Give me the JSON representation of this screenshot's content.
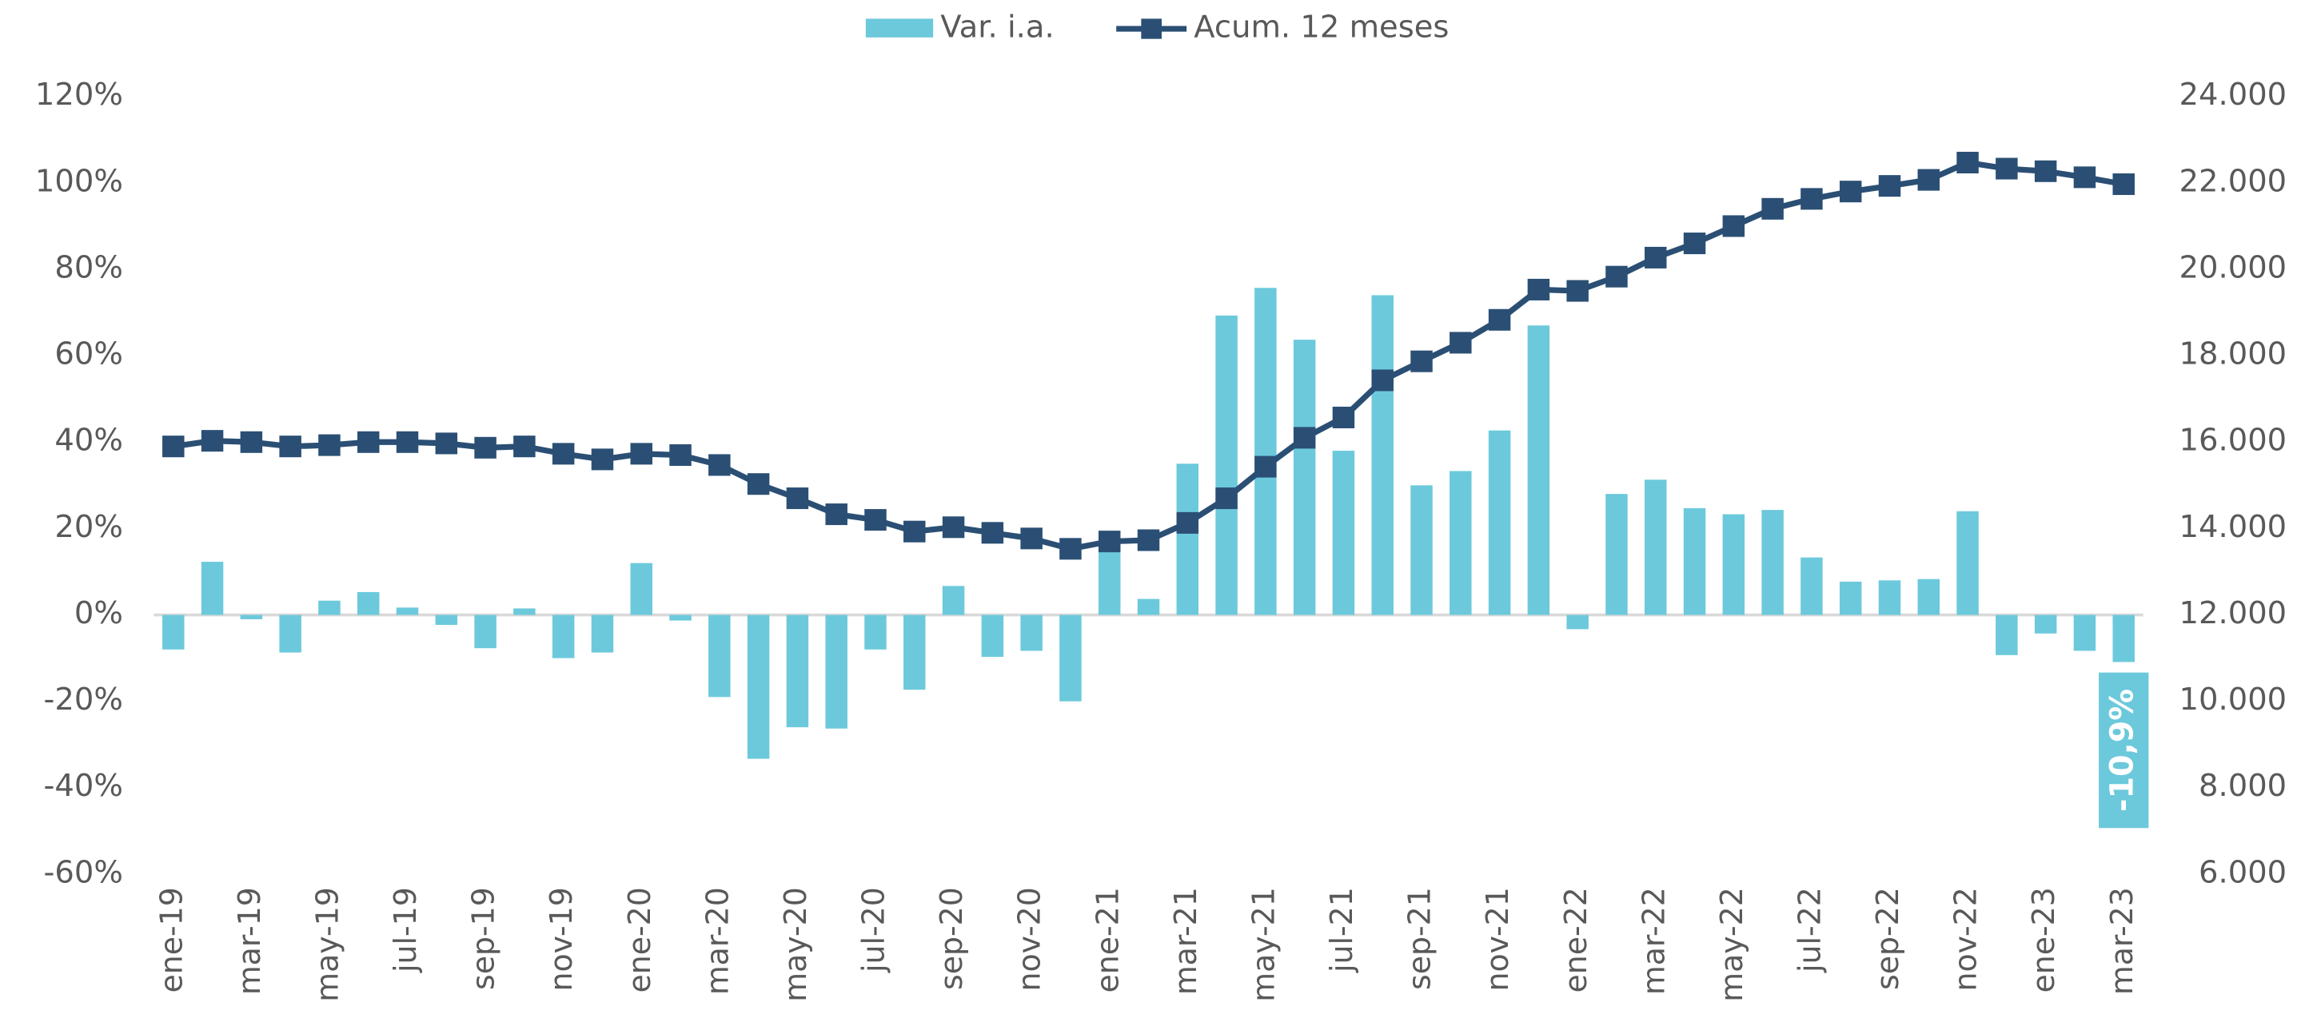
{
  "chart_data": {
    "type": "bar_line",
    "categories": [
      "ene-19",
      null,
      "mar-19",
      null,
      "may-19",
      null,
      "jul-19",
      null,
      "sep-19",
      null,
      "nov-19",
      null,
      "ene-20",
      null,
      "mar-20",
      null,
      "may-20",
      null,
      "jul-20",
      null,
      "sep-20",
      null,
      "nov-20",
      null,
      "ene-21",
      null,
      "mar-21",
      null,
      "may-21",
      null,
      "jul-21",
      null,
      "sep-21",
      null,
      "nov-21",
      null,
      "ene-22",
      null,
      "mar-22",
      null,
      "may-22",
      null,
      "jul-22",
      null,
      "sep-22",
      null,
      "nov-22",
      null,
      "ene-23",
      null,
      "mar-23"
    ],
    "series": [
      {
        "name": "Var. i.a.",
        "type": "bar",
        "color": "#6cc9db",
        "values": [
          -8,
          12.3,
          -1,
          -8.7,
          3.3,
          5.3,
          1.7,
          -2.3,
          -7.7,
          1.5,
          -10,
          -8.7,
          12,
          -1.3,
          -19,
          -33.3,
          -26,
          -26.3,
          -8,
          -17.3,
          6.7,
          -9.7,
          -8.3,
          -20,
          18,
          3.7,
          35,
          69.3,
          75.7,
          63.7,
          38,
          74,
          30,
          33.3,
          42.7,
          67,
          -3.3,
          28,
          31.3,
          24.7,
          23.3,
          24.3,
          13.3,
          7.7,
          8,
          8.3,
          24,
          -9.3,
          -4.3,
          -8.3,
          -10.9
        ],
        "value_labels": [
          null,
          null,
          null,
          null,
          null,
          null,
          null,
          null,
          null,
          null,
          null,
          null,
          null,
          null,
          null,
          null,
          null,
          null,
          null,
          null,
          null,
          null,
          null,
          null,
          null,
          null,
          null,
          null,
          null,
          null,
          null,
          null,
          null,
          null,
          null,
          null,
          null,
          null,
          null,
          null,
          null,
          null,
          null,
          null,
          null,
          null,
          null,
          null,
          null,
          null,
          "-10,9%"
        ]
      },
      {
        "name": "Acum. 12 meses",
        "type": "line",
        "axis": "y2",
        "color": "#2b4f74",
        "values": [
          15900,
          16030,
          16000,
          15900,
          15930,
          16000,
          16000,
          15970,
          15870,
          15900,
          15730,
          15600,
          15730,
          15700,
          15470,
          15030,
          14700,
          14330,
          14200,
          13930,
          14030,
          13900,
          13770,
          13530,
          13700,
          13730,
          14130,
          14700,
          15430,
          16100,
          16570,
          17430,
          17870,
          18300,
          18830,
          19530,
          19500,
          19830,
          20270,
          20600,
          21000,
          21400,
          21630,
          21800,
          21930,
          22070,
          22470,
          22330,
          22270,
          22130,
          21970
        ]
      }
    ],
    "ylim": [
      -60,
      120
    ],
    "yticks": [
      {
        "value": -60,
        "label": "-60%"
      },
      {
        "value": -40,
        "label": "-40%"
      },
      {
        "value": -20,
        "label": "-20%"
      },
      {
        "value": 0,
        "label": "0%"
      },
      {
        "value": 20,
        "label": "20%"
      },
      {
        "value": 40,
        "label": "40%"
      },
      {
        "value": 60,
        "label": "60%"
      },
      {
        "value": 80,
        "label": "80%"
      },
      {
        "value": 100,
        "label": "100%"
      },
      {
        "value": 120,
        "label": "120%"
      }
    ],
    "y2lim": [
      6000,
      24000
    ],
    "y2ticks": [
      {
        "value": 6000,
        "label": "6.000"
      },
      {
        "value": 8000,
        "label": "8.000"
      },
      {
        "value": 10000,
        "label": "10.000"
      },
      {
        "value": 12000,
        "label": "12.000"
      },
      {
        "value": 14000,
        "label": "14.000"
      },
      {
        "value": 16000,
        "label": "16.000"
      },
      {
        "value": 18000,
        "label": "18.000"
      },
      {
        "value": 20000,
        "label": "20.000"
      },
      {
        "value": 22000,
        "label": "22.000"
      },
      {
        "value": 24000,
        "label": "24.000"
      }
    ],
    "legend": "top"
  }
}
